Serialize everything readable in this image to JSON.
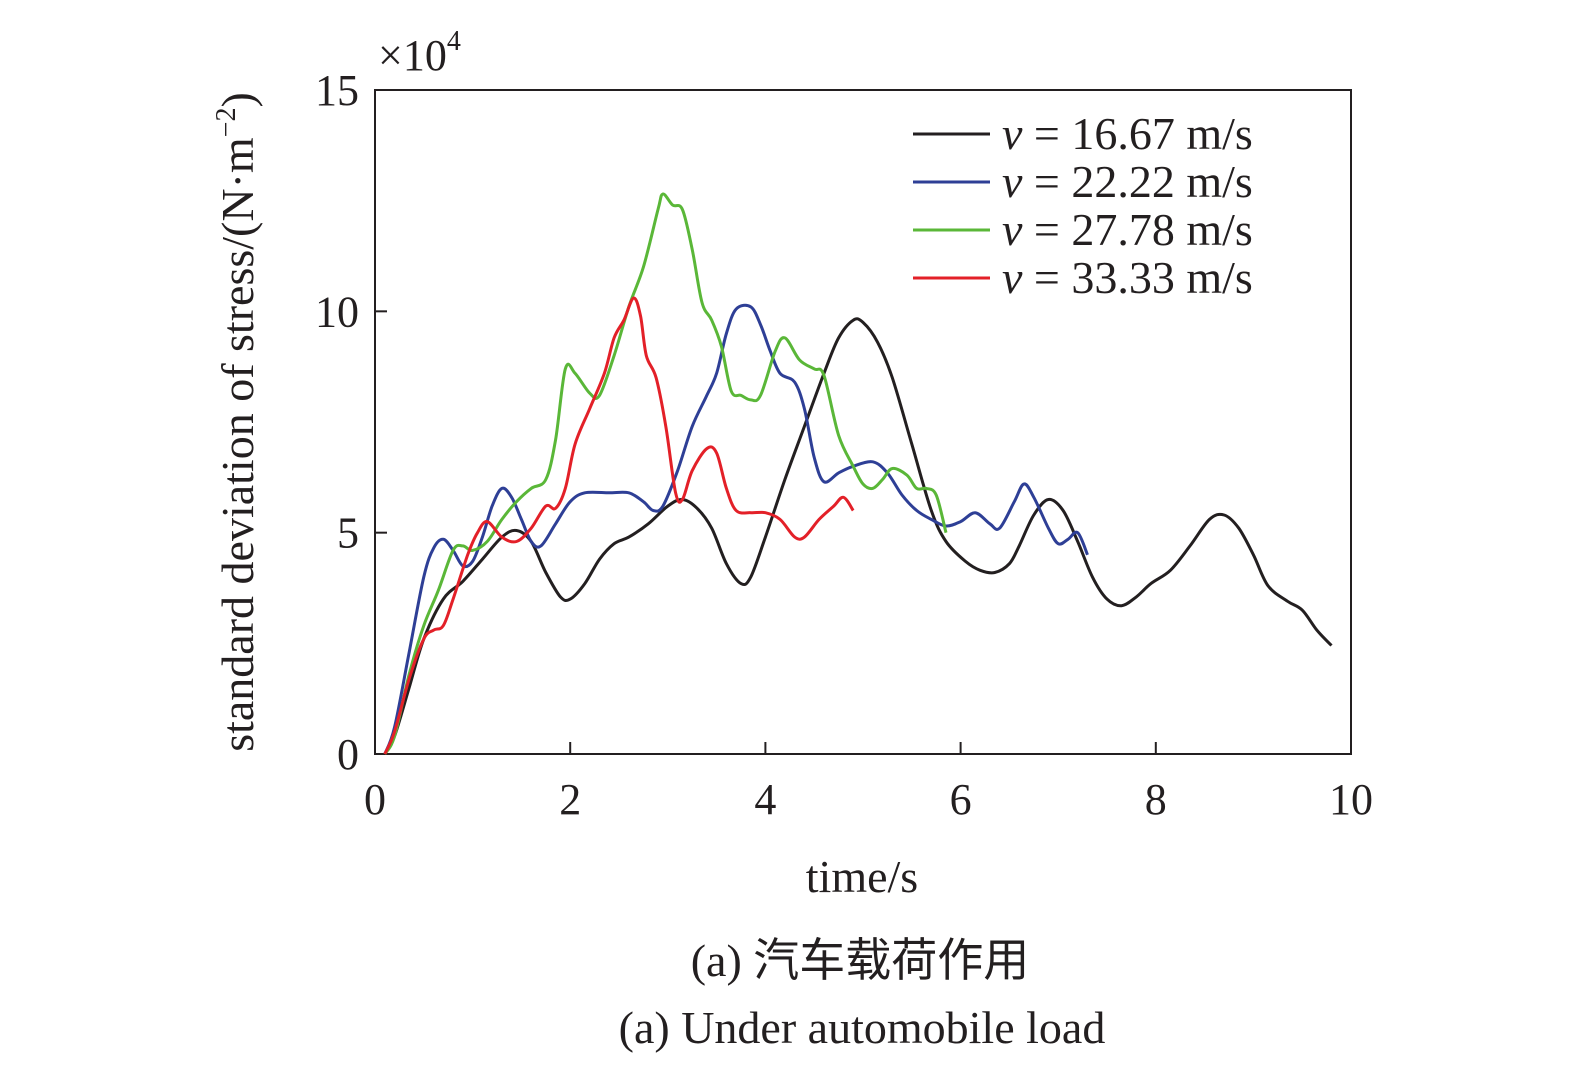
{
  "chart_data": {
    "type": "line",
    "xlabel": "time/s",
    "ylabel": "standard deviation of stress/(N·m",
    "ylabel_sup": "−2",
    "ylabel_tail": ")",
    "y_multiplier": "×10",
    "y_multiplier_sup": "4",
    "xlim": [
      0,
      10
    ],
    "ylim": [
      0,
      15
    ],
    "xticks": [
      0,
      2,
      4,
      6,
      8,
      10
    ],
    "yticks": [
      0,
      5,
      10,
      15
    ],
    "xtick_labels": [
      "0",
      "2",
      "4",
      "6",
      "8",
      "10"
    ],
    "ytick_labels": [
      "0",
      "5",
      "10",
      "15"
    ],
    "grid": false,
    "legend_position": "top-right",
    "captions": [
      "(a) 汽车载荷作用",
      "(a) Under automobile load"
    ],
    "series": [
      {
        "name": "v = 16.67 m/s",
        "legend_var": "v",
        "legend_rest": " = 16.67 m/s",
        "color": "#231f20",
        "points": [
          [
            0.1,
            0
          ],
          [
            0.2,
            0.4
          ],
          [
            0.35,
            1.5
          ],
          [
            0.5,
            2.6
          ],
          [
            0.7,
            3.5
          ],
          [
            0.9,
            3.9
          ],
          [
            1.1,
            4.4
          ],
          [
            1.3,
            4.9
          ],
          [
            1.45,
            5.05
          ],
          [
            1.6,
            4.8
          ],
          [
            1.75,
            4.1
          ],
          [
            1.9,
            3.55
          ],
          [
            2.0,
            3.5
          ],
          [
            2.15,
            3.85
          ],
          [
            2.3,
            4.4
          ],
          [
            2.45,
            4.75
          ],
          [
            2.6,
            4.9
          ],
          [
            2.8,
            5.2
          ],
          [
            3.0,
            5.6
          ],
          [
            3.15,
            5.75
          ],
          [
            3.3,
            5.55
          ],
          [
            3.45,
            5.1
          ],
          [
            3.6,
            4.3
          ],
          [
            3.75,
            3.85
          ],
          [
            3.85,
            4.0
          ],
          [
            4.0,
            4.9
          ],
          [
            4.2,
            6.2
          ],
          [
            4.4,
            7.4
          ],
          [
            4.6,
            8.6
          ],
          [
            4.75,
            9.4
          ],
          [
            4.9,
            9.8
          ],
          [
            5.0,
            9.75
          ],
          [
            5.15,
            9.3
          ],
          [
            5.3,
            8.5
          ],
          [
            5.5,
            7.0
          ],
          [
            5.7,
            5.5
          ],
          [
            5.85,
            4.8
          ],
          [
            6.05,
            4.35
          ],
          [
            6.2,
            4.15
          ],
          [
            6.35,
            4.1
          ],
          [
            6.5,
            4.3
          ],
          [
            6.6,
            4.7
          ],
          [
            6.75,
            5.4
          ],
          [
            6.9,
            5.75
          ],
          [
            7.05,
            5.5
          ],
          [
            7.2,
            4.8
          ],
          [
            7.35,
            4.0
          ],
          [
            7.5,
            3.5
          ],
          [
            7.65,
            3.35
          ],
          [
            7.8,
            3.55
          ],
          [
            7.95,
            3.85
          ],
          [
            8.15,
            4.15
          ],
          [
            8.35,
            4.7
          ],
          [
            8.55,
            5.3
          ],
          [
            8.7,
            5.4
          ],
          [
            8.85,
            5.1
          ],
          [
            9.0,
            4.5
          ],
          [
            9.15,
            3.8
          ],
          [
            9.35,
            3.45
          ],
          [
            9.5,
            3.25
          ],
          [
            9.65,
            2.8
          ],
          [
            9.8,
            2.45
          ]
        ]
      },
      {
        "name": "v = 22.22 m/s",
        "legend_var": "v",
        "legend_rest": " = 22.22 m/s",
        "color": "#2e3f96",
        "points": [
          [
            0.1,
            0
          ],
          [
            0.2,
            0.6
          ],
          [
            0.35,
            2.3
          ],
          [
            0.5,
            4.0
          ],
          [
            0.6,
            4.65
          ],
          [
            0.7,
            4.85
          ],
          [
            0.8,
            4.6
          ],
          [
            0.9,
            4.25
          ],
          [
            1.0,
            4.35
          ],
          [
            1.1,
            4.9
          ],
          [
            1.2,
            5.6
          ],
          [
            1.3,
            6.0
          ],
          [
            1.4,
            5.8
          ],
          [
            1.5,
            5.3
          ],
          [
            1.6,
            4.8
          ],
          [
            1.7,
            4.7
          ],
          [
            1.85,
            5.2
          ],
          [
            2.0,
            5.7
          ],
          [
            2.15,
            5.9
          ],
          [
            2.4,
            5.9
          ],
          [
            2.6,
            5.9
          ],
          [
            2.75,
            5.7
          ],
          [
            2.85,
            5.5
          ],
          [
            2.95,
            5.6
          ],
          [
            3.1,
            6.4
          ],
          [
            3.25,
            7.4
          ],
          [
            3.4,
            8.1
          ],
          [
            3.5,
            8.6
          ],
          [
            3.6,
            9.5
          ],
          [
            3.7,
            10.05
          ],
          [
            3.85,
            10.1
          ],
          [
            3.95,
            9.7
          ],
          [
            4.05,
            9.1
          ],
          [
            4.15,
            8.6
          ],
          [
            4.3,
            8.4
          ],
          [
            4.4,
            7.8
          ],
          [
            4.5,
            6.7
          ],
          [
            4.6,
            6.15
          ],
          [
            4.75,
            6.35
          ],
          [
            4.9,
            6.5
          ],
          [
            5.1,
            6.6
          ],
          [
            5.25,
            6.35
          ],
          [
            5.4,
            5.85
          ],
          [
            5.55,
            5.5
          ],
          [
            5.7,
            5.3
          ],
          [
            5.85,
            5.15
          ],
          [
            6.0,
            5.25
          ],
          [
            6.15,
            5.45
          ],
          [
            6.3,
            5.2
          ],
          [
            6.4,
            5.1
          ],
          [
            6.55,
            5.7
          ],
          [
            6.65,
            6.1
          ],
          [
            6.75,
            5.8
          ],
          [
            6.9,
            5.1
          ],
          [
            7.0,
            4.75
          ],
          [
            7.1,
            4.85
          ],
          [
            7.2,
            5.0
          ],
          [
            7.3,
            4.5
          ]
        ]
      },
      {
        "name": "v = 27.78 m/s",
        "legend_var": "v",
        "legend_rest": " = 27.78 m/s",
        "color": "#5ab738",
        "points": [
          [
            0.1,
            0
          ],
          [
            0.2,
            0.4
          ],
          [
            0.35,
            1.8
          ],
          [
            0.5,
            2.9
          ],
          [
            0.65,
            3.7
          ],
          [
            0.8,
            4.6
          ],
          [
            0.9,
            4.7
          ],
          [
            1.0,
            4.6
          ],
          [
            1.15,
            4.8
          ],
          [
            1.3,
            5.3
          ],
          [
            1.45,
            5.7
          ],
          [
            1.6,
            6.0
          ],
          [
            1.75,
            6.2
          ],
          [
            1.85,
            7.1
          ],
          [
            1.95,
            8.7
          ],
          [
            2.05,
            8.6
          ],
          [
            2.2,
            8.15
          ],
          [
            2.3,
            8.1
          ],
          [
            2.45,
            9.0
          ],
          [
            2.6,
            10.1
          ],
          [
            2.75,
            11.0
          ],
          [
            2.9,
            12.3
          ],
          [
            2.95,
            12.65
          ],
          [
            3.05,
            12.4
          ],
          [
            3.15,
            12.3
          ],
          [
            3.25,
            11.4
          ],
          [
            3.35,
            10.2
          ],
          [
            3.45,
            9.8
          ],
          [
            3.55,
            9.2
          ],
          [
            3.65,
            8.2
          ],
          [
            3.75,
            8.1
          ],
          [
            3.85,
            8.0
          ],
          [
            3.95,
            8.1
          ],
          [
            4.1,
            9.1
          ],
          [
            4.2,
            9.4
          ],
          [
            4.35,
            8.9
          ],
          [
            4.5,
            8.7
          ],
          [
            4.6,
            8.55
          ],
          [
            4.75,
            7.2
          ],
          [
            4.9,
            6.5
          ],
          [
            5.0,
            6.1
          ],
          [
            5.1,
            6.0
          ],
          [
            5.2,
            6.2
          ],
          [
            5.3,
            6.45
          ],
          [
            5.45,
            6.3
          ],
          [
            5.55,
            6.0
          ],
          [
            5.65,
            6.0
          ],
          [
            5.75,
            5.85
          ],
          [
            5.85,
            5.0
          ]
        ]
      },
      {
        "name": "v = 33.33 m/s",
        "legend_var": "v",
        "legend_rest": " = 33.33 m/s",
        "color": "#e32028",
        "points": [
          [
            0.1,
            0
          ],
          [
            0.2,
            0.5
          ],
          [
            0.35,
            1.7
          ],
          [
            0.5,
            2.6
          ],
          [
            0.6,
            2.8
          ],
          [
            0.7,
            2.9
          ],
          [
            0.8,
            3.5
          ],
          [
            0.95,
            4.5
          ],
          [
            1.05,
            5.0
          ],
          [
            1.15,
            5.25
          ],
          [
            1.3,
            4.9
          ],
          [
            1.45,
            4.8
          ],
          [
            1.6,
            5.1
          ],
          [
            1.75,
            5.6
          ],
          [
            1.85,
            5.55
          ],
          [
            1.95,
            6.0
          ],
          [
            2.05,
            7.0
          ],
          [
            2.2,
            7.8
          ],
          [
            2.35,
            8.6
          ],
          [
            2.45,
            9.4
          ],
          [
            2.55,
            9.8
          ],
          [
            2.65,
            10.3
          ],
          [
            2.72,
            9.9
          ],
          [
            2.78,
            9.0
          ],
          [
            2.88,
            8.5
          ],
          [
            2.98,
            7.4
          ],
          [
            3.08,
            5.9
          ],
          [
            3.15,
            5.75
          ],
          [
            3.25,
            6.4
          ],
          [
            3.4,
            6.9
          ],
          [
            3.5,
            6.8
          ],
          [
            3.6,
            6.0
          ],
          [
            3.7,
            5.5
          ],
          [
            3.85,
            5.45
          ],
          [
            4.0,
            5.45
          ],
          [
            4.15,
            5.3
          ],
          [
            4.3,
            4.9
          ],
          [
            4.4,
            4.9
          ],
          [
            4.55,
            5.3
          ],
          [
            4.7,
            5.6
          ],
          [
            4.8,
            5.8
          ],
          [
            4.9,
            5.5
          ]
        ]
      }
    ]
  }
}
